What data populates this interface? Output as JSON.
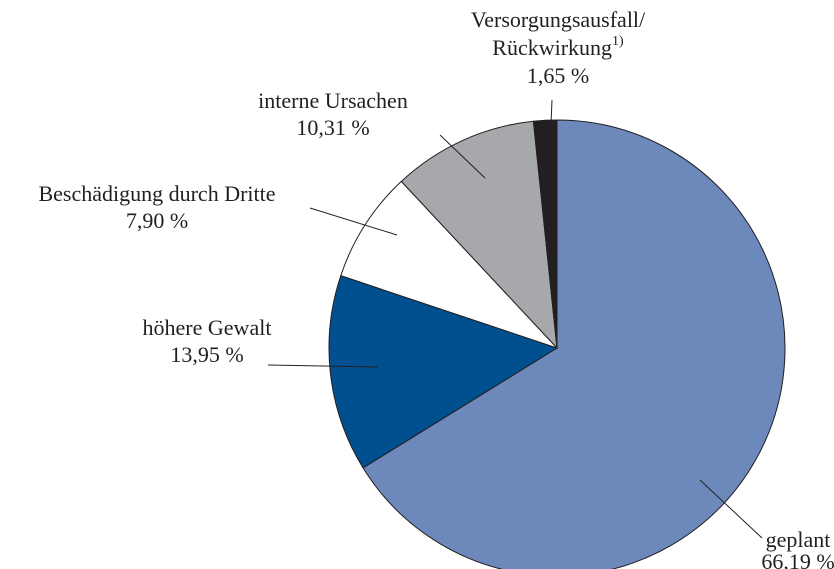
{
  "chart_data": {
    "type": "pie",
    "categories": [
      "geplant",
      "höhere Gewalt",
      "Beschädigung durch Dritte",
      "interne Ursachen",
      "Versorgungsausfall/\nRückwirkung"
    ],
    "footnote_marks": [
      null,
      null,
      null,
      null,
      "1)"
    ],
    "values": [
      66.19,
      13.95,
      7.9,
      10.31,
      1.65
    ],
    "value_labels": [
      "66,19 %",
      "13,95 %",
      "7,90 %",
      "10,31 %",
      "1,65 %"
    ],
    "colors": [
      "#6d89bc",
      "#004f8e",
      "#ffffff",
      "#a6a8ab",
      "#231f20"
    ]
  }
}
